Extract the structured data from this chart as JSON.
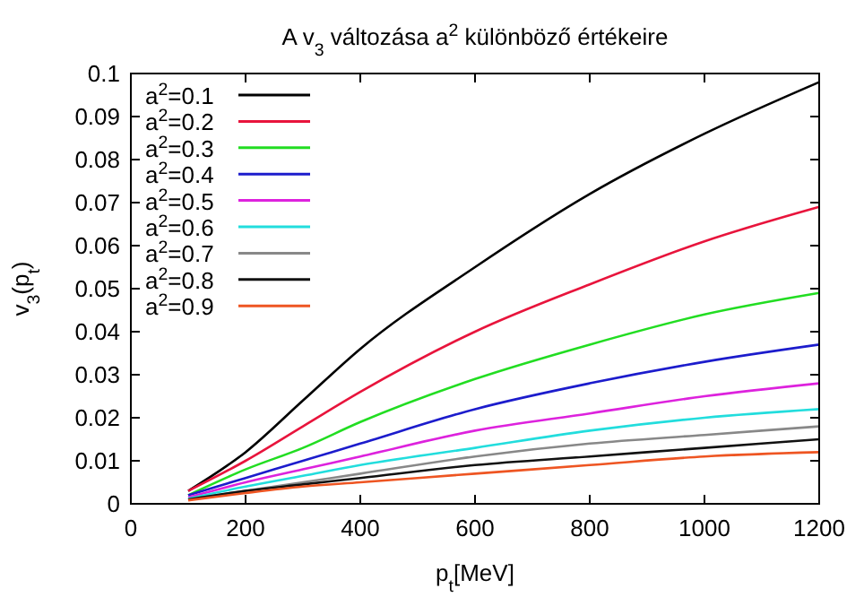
{
  "chart_data": {
    "type": "line",
    "title": "A v$_{3}$ változása a$^{2}$ különböző értékeire",
    "xlabel": "p$_{t}$[MeV]",
    "ylabel": "v$_{3}$(p$_{t}$)",
    "x": [
      100,
      200,
      300,
      400,
      600,
      800,
      1000,
      1200
    ],
    "xlim": [
      0,
      1200
    ],
    "xticks": [
      0,
      200,
      400,
      600,
      800,
      1000,
      1200
    ],
    "ylim": [
      0,
      0.1
    ],
    "yticks": [
      0,
      0.01,
      0.02,
      0.03,
      0.04,
      0.05,
      0.06,
      0.07,
      0.08,
      0.09,
      0.1
    ],
    "grid": false,
    "legend": "top left",
    "marker": "none",
    "line_style": "solid",
    "series": [
      {
        "name": "a$^{2}$=0.1",
        "color": "#000000",
        "values": [
          0.003,
          0.012,
          0.024,
          0.036,
          0.055,
          0.072,
          0.086,
          0.098
        ]
      },
      {
        "name": "a$^{2}$=0.2",
        "color": "#e8143c",
        "values": [
          0.003,
          0.01,
          0.018,
          0.026,
          0.04,
          0.051,
          0.061,
          0.069
        ]
      },
      {
        "name": "a$^{2}$=0.3",
        "color": "#22dd22",
        "values": [
          0.002,
          0.008,
          0.013,
          0.019,
          0.029,
          0.037,
          0.044,
          0.049
        ]
      },
      {
        "name": "a$^{2}$=0.4",
        "color": "#1c1ccc",
        "values": [
          0.002,
          0.006,
          0.01,
          0.014,
          0.022,
          0.028,
          0.033,
          0.037
        ]
      },
      {
        "name": "a$^{2}$=0.5",
        "color": "#dd22dd",
        "values": [
          0.0015,
          0.005,
          0.008,
          0.011,
          0.017,
          0.021,
          0.025,
          0.028
        ]
      },
      {
        "name": "a$^{2}$=0.6",
        "color": "#22dddd",
        "values": [
          0.0012,
          0.004,
          0.0065,
          0.009,
          0.013,
          0.017,
          0.02,
          0.022
        ]
      },
      {
        "name": "a$^{2}$=0.7",
        "color": "#888888",
        "values": [
          0.001,
          0.003,
          0.005,
          0.007,
          0.011,
          0.014,
          0.016,
          0.018
        ]
      },
      {
        "name": "a$^{2}$=0.8",
        "color": "#111111",
        "values": [
          0.001,
          0.003,
          0.0045,
          0.006,
          0.009,
          0.011,
          0.013,
          0.015
        ]
      },
      {
        "name": "a$^{2}$=0.9",
        "color": "#ee5522",
        "values": [
          0.0008,
          0.0025,
          0.004,
          0.005,
          0.007,
          0.009,
          0.011,
          0.012
        ]
      }
    ]
  }
}
